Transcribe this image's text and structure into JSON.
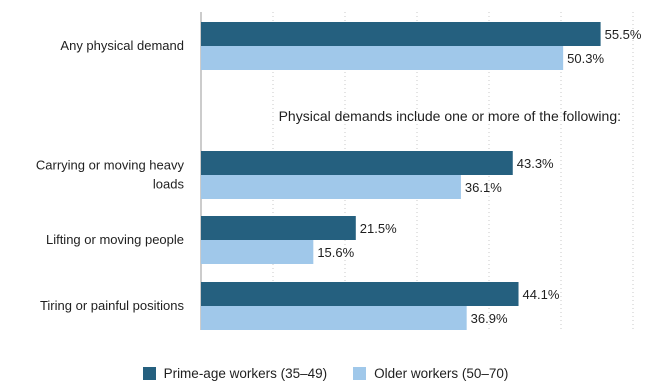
{
  "chart_data": {
    "type": "bar",
    "orientation": "horizontal",
    "categories": [
      [
        "Any physical demand"
      ],
      [
        "Carrying or moving heavy",
        "loads"
      ],
      [
        "Lifting or moving people"
      ],
      [
        "Tiring or painful positions"
      ]
    ],
    "annotation": "Physical demands include one or more of the following:",
    "series": [
      {
        "name": "Prime-age workers (35–49)",
        "color": "#25607f",
        "values": [
          55.5,
          43.3,
          21.5,
          44.1
        ],
        "labels": [
          "55.5%",
          "43.3%",
          "21.5%",
          "44.1%"
        ]
      },
      {
        "name": "Older workers (50–70)",
        "color": "#a0c8ea",
        "values": [
          50.3,
          36.1,
          15.6,
          36.9
        ],
        "labels": [
          "50.3%",
          "36.1%",
          "15.6%",
          "36.9%"
        ]
      }
    ],
    "xlim": [
      0,
      60
    ],
    "grid": "vertical-dotted",
    "legend_position": "bottom"
  }
}
